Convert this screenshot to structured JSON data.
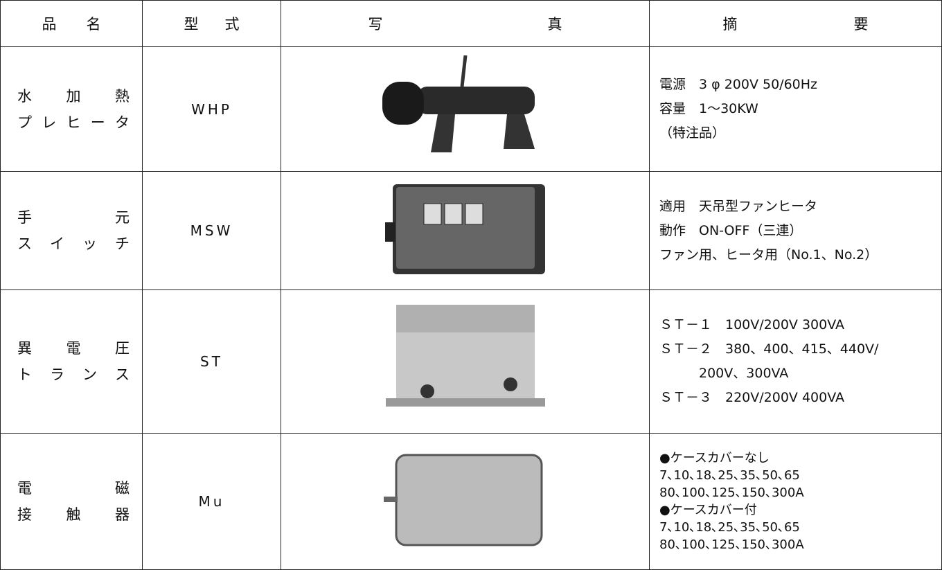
{
  "table": {
    "header": [
      "品 名",
      "型 式",
      "写 真",
      "摘 要"
    ],
    "rows": [
      {
        "name": [
          "水 加 熱",
          "プ レ ヒ ー タ"
        ],
        "model": "WHP",
        "summary": [
          "電源　3 φ 200V 50/60Hz",
          "容量　1～30KW",
          "（特注品）"
        ]
      },
      {
        "name": [
          "手 元",
          "ス イ ッ チ"
        ],
        "model": "MSW",
        "summary": [
          "適用　天吊型ファンヒータ",
          "動作　ON-OFF（三連）",
          "ファン用、ヒータ用（No.1、No.2）"
        ]
      },
      {
        "name": [
          "異 電 圧",
          "ト ラ ン ス"
        ],
        "model": "ST",
        "summary": [
          "ＳＴ－１　100V/200V 300VA",
          "ＳＴ－２　380、400、415、440V/",
          "　　　200V、300VA",
          "ＳＴ－３　220V/200V 400VA"
        ]
      },
      {
        "name": [
          "電 磁",
          "接 触 器"
        ],
        "model": "Mu",
        "summary": [
          "●ケースカバーなし",
          "7､10､18､25､35､50､65",
          "80､100､125､150､300A",
          "●ケースカバー付",
          "7､10､18､25､35､50､65",
          "80､100､125､150､300A"
        ]
      }
    ]
  }
}
